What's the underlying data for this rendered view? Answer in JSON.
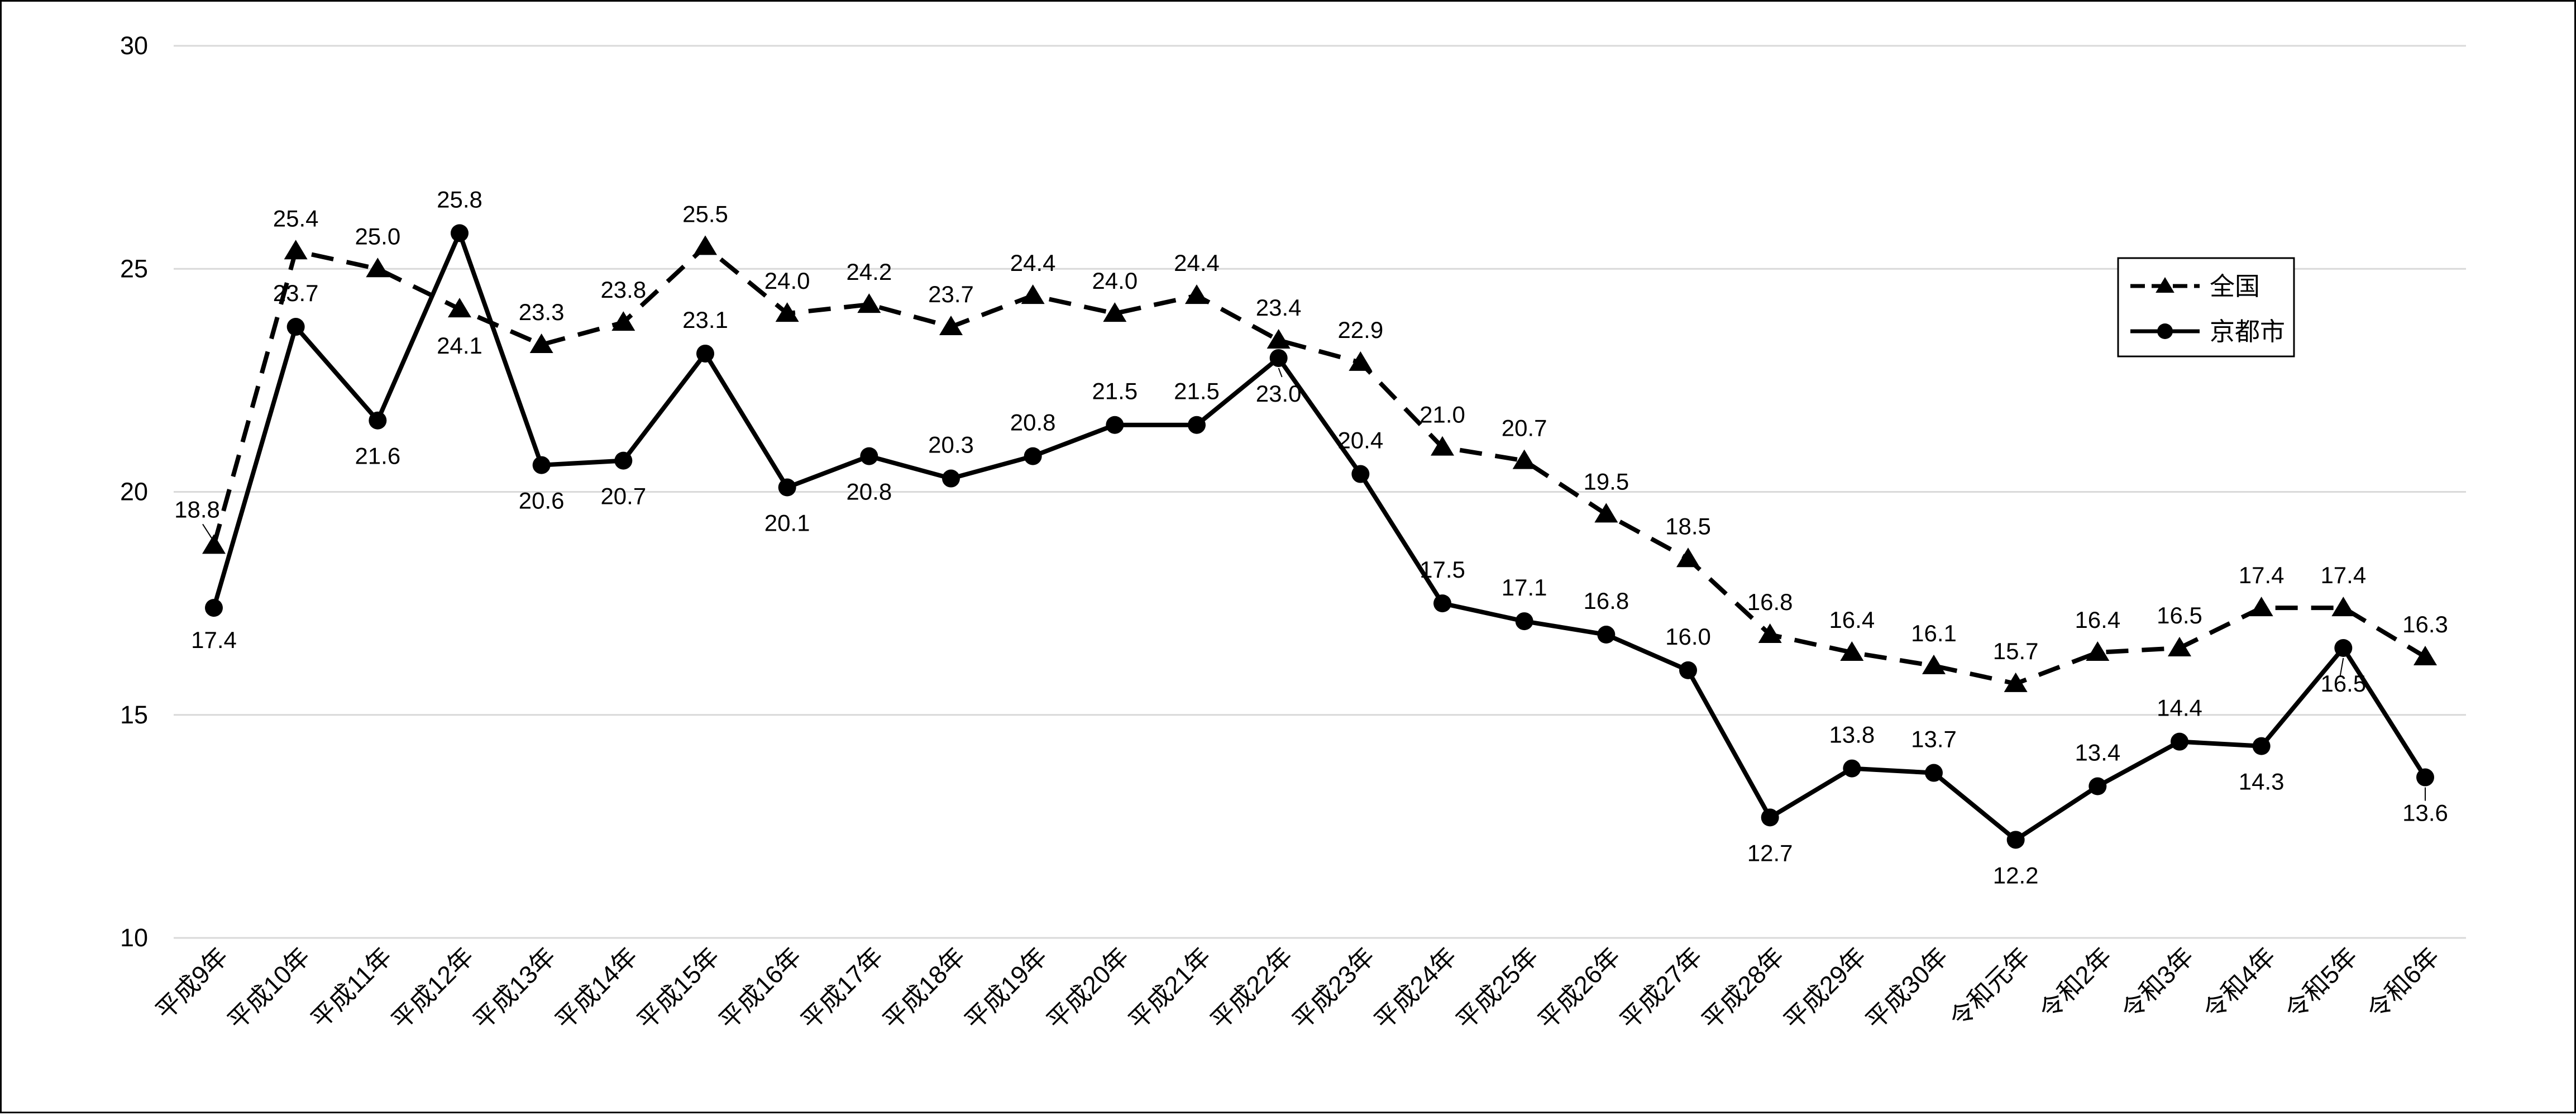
{
  "chart_data": {
    "type": "line",
    "title": "",
    "xlabel": "",
    "ylabel": "",
    "ylim": [
      10,
      30
    ],
    "yticks": [
      10,
      15,
      20,
      25,
      30
    ],
    "grid": "horizontal",
    "legend_position": "right",
    "categories": [
      "平成9年",
      "平成10年",
      "平成11年",
      "平成12年",
      "平成13年",
      "平成14年",
      "平成15年",
      "平成16年",
      "平成17年",
      "平成18年",
      "平成19年",
      "平成20年",
      "平成21年",
      "平成22年",
      "平成23年",
      "平成24年",
      "平成25年",
      "平成26年",
      "平成27年",
      "平成28年",
      "平成29年",
      "平成30年",
      "令和元年",
      "令和2年",
      "令和3年",
      "令和4年",
      "令和5年",
      "令和6年"
    ],
    "series": [
      {
        "name": "全国",
        "marker": "triangle",
        "line_style": "dashed",
        "color": "#000000",
        "values": [
          18.8,
          25.4,
          25.0,
          24.1,
          23.3,
          23.8,
          25.5,
          24.0,
          24.2,
          23.7,
          24.4,
          24.0,
          24.4,
          23.4,
          22.9,
          21.0,
          20.7,
          19.5,
          18.5,
          16.8,
          16.4,
          16.1,
          15.7,
          16.4,
          16.5,
          17.4,
          17.4,
          16.3
        ],
        "labels": [
          "18.8",
          "25.4",
          "25.0",
          "24.1",
          "23.3",
          "23.8",
          "25.5",
          "24.0",
          "24.2",
          "23.7",
          "24.4",
          "24.0",
          "24.4",
          "23.4",
          "22.9",
          "21.0",
          "20.7",
          "19.5",
          "18.5",
          "16.8",
          "16.4",
          "16.1",
          "15.7",
          "16.4",
          "16.5",
          "17.4",
          "17.4",
          "16.3"
        ]
      },
      {
        "name": "京都市",
        "marker": "circle",
        "line_style": "solid",
        "color": "#000000",
        "values": [
          17.4,
          23.7,
          21.6,
          25.8,
          20.6,
          20.7,
          23.1,
          20.1,
          20.8,
          20.3,
          20.8,
          21.5,
          21.5,
          23.0,
          20.4,
          17.5,
          17.1,
          16.8,
          16.0,
          12.7,
          13.8,
          13.7,
          12.2,
          13.4,
          14.4,
          14.3,
          16.5,
          13.6
        ],
        "labels": [
          "17.4",
          "23.7",
          "21.6",
          "25.8",
          "20.6",
          "20.7",
          "23.1",
          "20.1",
          "20.8",
          "20.3",
          "20.8",
          "21.5",
          "21.5",
          "23.0",
          "20.4",
          "17.5",
          "17.1",
          "16.8",
          "16.0",
          "12.7",
          "13.8",
          "13.7",
          "12.2",
          "13.4",
          "14.4",
          "14.3",
          "16.5",
          "13.6"
        ]
      }
    ]
  }
}
